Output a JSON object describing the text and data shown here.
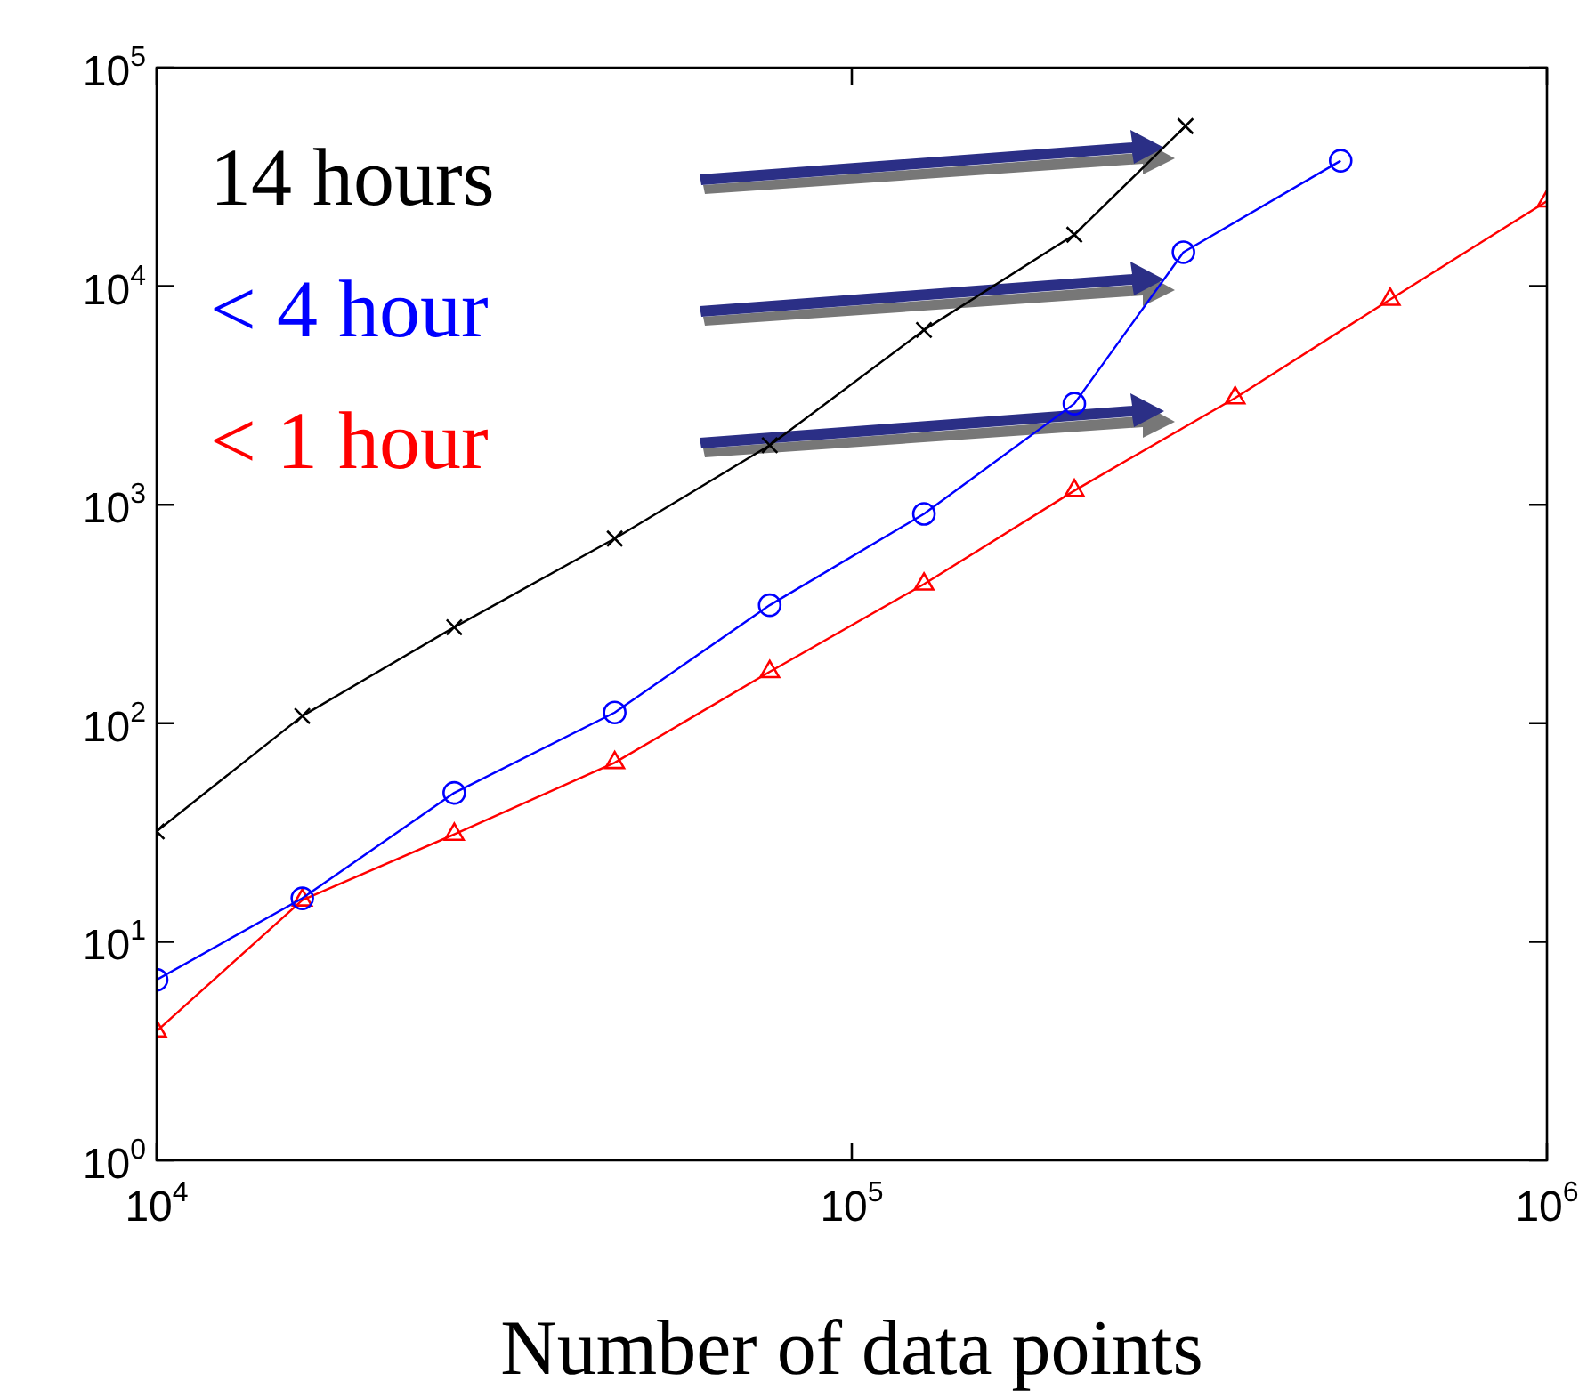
{
  "chart_data": {
    "type": "line",
    "xlabel": "Number of data points",
    "log": "xy",
    "grid": false,
    "legend": false,
    "xlim": [
      10000,
      1000000
    ],
    "xticks": [
      {
        "value": 10000,
        "label": "10$^{4}$"
      },
      {
        "value": 100000,
        "label": "10$^{5}$"
      },
      {
        "value": 1000000,
        "label": "10$^{6}$"
      }
    ],
    "ylim": [
      1,
      100000
    ],
    "yticks": [
      {
        "value": 1,
        "label": "10$^{0}$"
      },
      {
        "value": 10,
        "label": "10$^{1}$"
      },
      {
        "value": 100,
        "label": "10$^{2}$"
      },
      {
        "value": 1000,
        "label": "10$^{3}$"
      },
      {
        "value": 10000,
        "label": "10$^{4}$"
      },
      {
        "value": 100000,
        "label": "10$^{5}$"
      }
    ],
    "series": [
      {
        "color": "#000000",
        "marker": "cross",
        "x": [
          10000,
          16200,
          26800,
          45600,
          76200,
          127000,
          209000,
          302000
        ],
        "values": [
          32,
          108,
          275,
          700,
          1870,
          6300,
          17200,
          54000
        ]
      },
      {
        "color": "#0000ff",
        "marker": "circle",
        "x": [
          10000,
          16200,
          26800,
          45600,
          76200,
          127000,
          209000,
          300000,
          505000
        ],
        "values": [
          6.7,
          15.8,
          48,
          112,
          347,
          908,
          2900,
          14300,
          37500
        ]
      },
      {
        "color": "#ff0000",
        "marker": "triangle",
        "x": [
          10000,
          16200,
          26800,
          45600,
          76200,
          127000,
          209000,
          356000,
          595000,
          1000000
        ],
        "values": [
          3.9,
          15.5,
          31,
          66,
          172,
          433,
          1160,
          3080,
          8700,
          24500
        ]
      }
    ],
    "annotations": [
      "14 hours",
      "< 4 hour",
      "< 1 hour"
    ]
  }
}
